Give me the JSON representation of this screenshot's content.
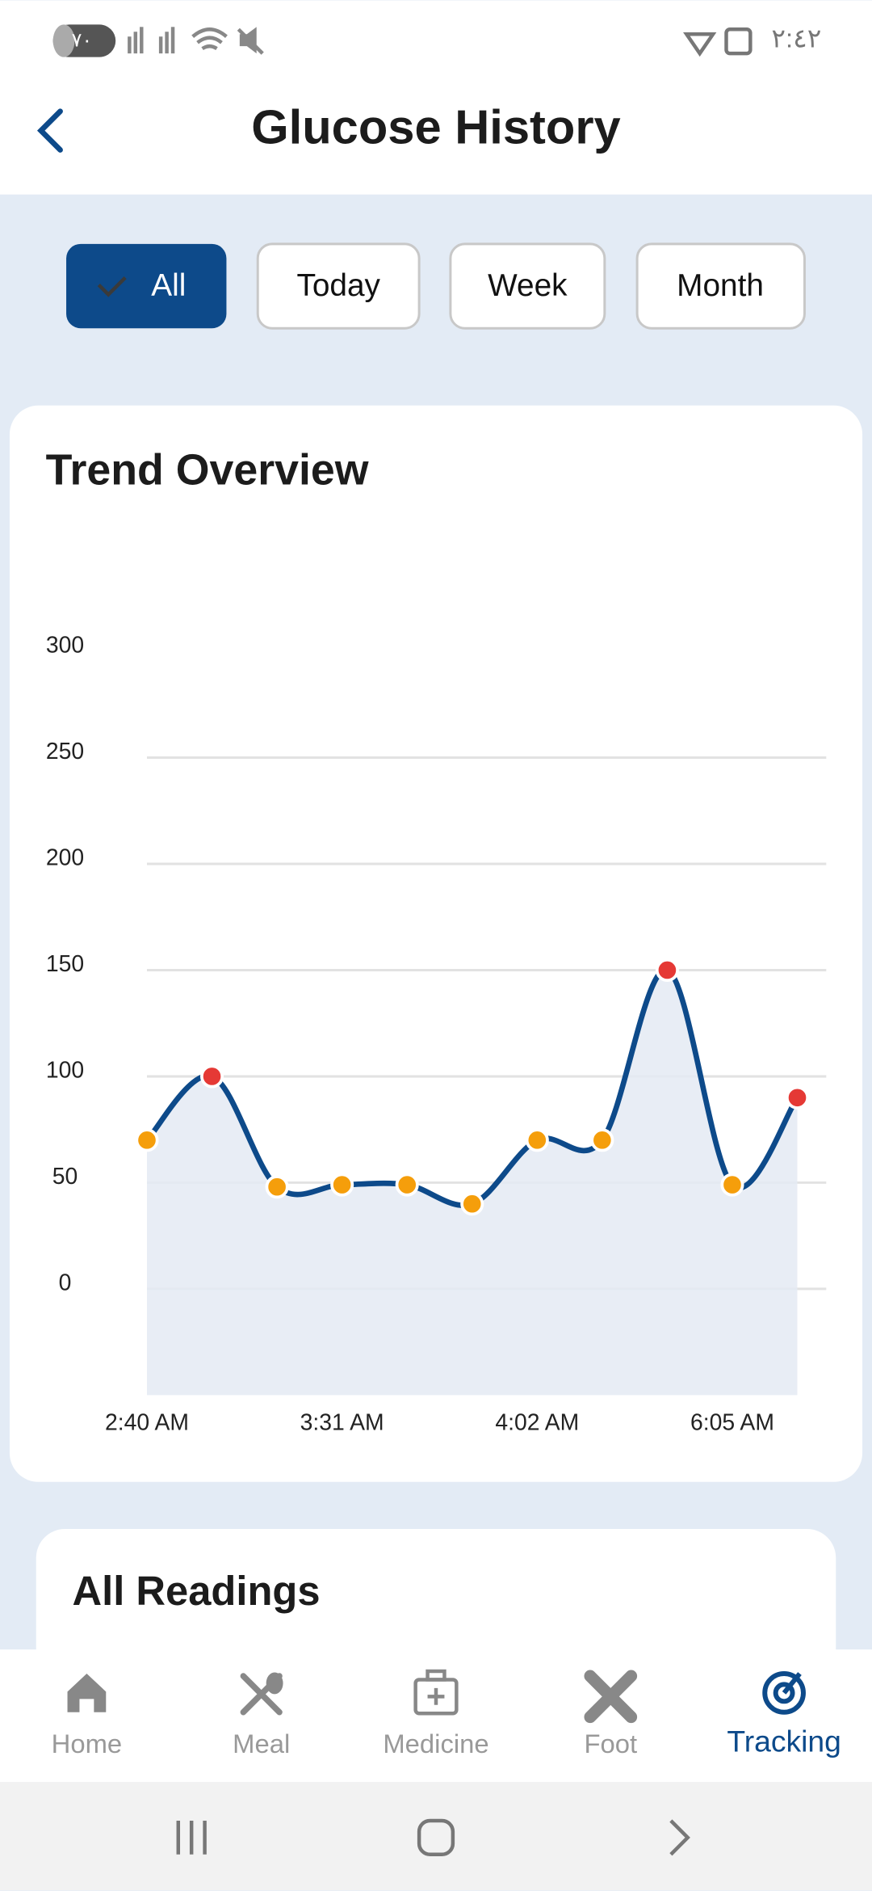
{
  "status_bar": {
    "battery": "٧٠",
    "time": "٢:٤٢"
  },
  "header": {
    "title": "Glucose History"
  },
  "filters": [
    "All",
    "Today",
    "Week",
    "Month"
  ],
  "trend_card": {
    "title": "Trend Overview"
  },
  "chart_data": {
    "type": "line",
    "categories": [
      "2:40 AM",
      null,
      null,
      "3:31 AM",
      null,
      null,
      "4:02 AM",
      null,
      null,
      "6:05 AM",
      null
    ],
    "values": [
      70,
      100,
      48,
      49,
      49,
      40,
      70,
      70,
      150,
      49,
      90
    ],
    "point_colors": [
      "#f59e0b",
      "#e53935",
      "#f59e0b",
      "#f59e0b",
      "#f59e0b",
      "#f59e0b",
      "#f59e0b",
      "#f59e0b",
      "#e53935",
      "#f59e0b",
      "#e53935"
    ],
    "color": "#0d4a8a",
    "area_color": "#e4eaf3",
    "ylim": [
      -50,
      300
    ],
    "yticks": [
      0,
      50,
      100,
      150,
      200,
      250,
      300
    ],
    "grid": true
  },
  "readings_card": {
    "title": "All Readings"
  },
  "bottom_nav": {
    "items": [
      "Home",
      "Meal",
      "Medicine",
      "Foot",
      "Tracking"
    ]
  }
}
